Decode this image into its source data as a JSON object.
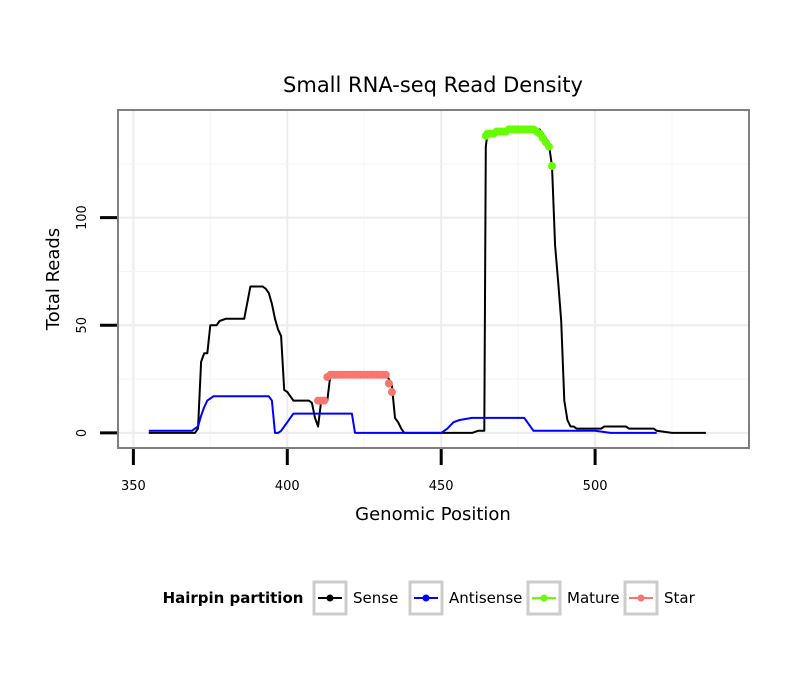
{
  "chart_data": {
    "type": "line",
    "title": "Small RNA-seq Read Density",
    "xlabel": "Genomic Position",
    "ylabel": "Total Reads",
    "xlim": [
      345,
      550
    ],
    "ylim": [
      -7,
      150
    ],
    "x_ticks": [
      350,
      400,
      450,
      500
    ],
    "y_ticks": [
      0,
      50,
      100
    ],
    "grid": true,
    "legend": {
      "title": "Hairpin partition",
      "position": "bottom",
      "entries": [
        "Sense",
        "Antisense",
        "Mature",
        "Star"
      ]
    },
    "series": [
      {
        "name": "Sense",
        "color": "#000000",
        "style": "line",
        "x": [
          355,
          370,
          371,
          372,
          373,
          374,
          375,
          376,
          377,
          378,
          380,
          382,
          384,
          385,
          386,
          388,
          390,
          391,
          392,
          393,
          394,
          395,
          396,
          397,
          398,
          399,
          400,
          402,
          404,
          405,
          407,
          408,
          409,
          410,
          411,
          412,
          413,
          414,
          431,
          432,
          433,
          434,
          435,
          436,
          437,
          438,
          440,
          445,
          450,
          455,
          460,
          462,
          464,
          464.5,
          465,
          468,
          476,
          480,
          482,
          483,
          484,
          485,
          486,
          487,
          488,
          489,
          490,
          491,
          492,
          493,
          494,
          496,
          500,
          502,
          503,
          505,
          510,
          511,
          515,
          516,
          519,
          520,
          525,
          530,
          536
        ],
        "y": [
          0,
          0,
          2,
          33,
          37,
          37,
          50,
          50,
          50,
          52,
          53,
          53,
          53,
          53,
          53,
          68,
          68,
          68,
          68,
          67,
          65,
          60,
          53,
          48,
          45,
          20,
          19,
          15,
          15,
          15,
          15,
          14,
          7,
          3,
          15,
          15,
          15,
          27,
          27,
          27,
          25,
          22,
          7,
          5,
          2,
          0,
          0,
          0,
          0,
          0,
          0,
          1,
          1,
          133,
          139,
          140,
          141,
          141,
          141,
          139,
          137,
          134,
          124,
          87,
          70,
          52,
          15,
          6,
          3,
          3,
          2,
          2,
          2,
          2,
          3,
          3,
          3,
          2,
          2,
          2,
          2,
          1,
          0,
          0,
          0
        ]
      },
      {
        "name": "Antisense",
        "color": "#0000ff",
        "style": "line",
        "x": [
          355,
          365,
          368,
          369,
          370,
          371,
          372,
          373,
          374,
          375,
          376,
          377,
          378,
          380,
          385,
          390,
          393,
          394,
          395,
          396,
          397,
          398,
          399,
          400,
          402,
          410,
          415,
          416,
          417,
          418,
          419,
          420,
          421,
          422,
          430,
          435,
          440,
          450,
          452,
          454,
          456,
          460,
          462,
          465,
          470,
          475,
          476,
          477,
          480,
          490,
          500,
          505,
          510,
          515,
          517,
          518,
          519,
          520
        ],
        "y": [
          1,
          1,
          1,
          1,
          2,
          3,
          8,
          12,
          15,
          16,
          17,
          17,
          17,
          17,
          17,
          17,
          17,
          17,
          15,
          0,
          0,
          1,
          3,
          5,
          9,
          9,
          9,
          9,
          9,
          9,
          9,
          9,
          9,
          0,
          0,
          0,
          0,
          0,
          2,
          5,
          6,
          7,
          7,
          7,
          7,
          7,
          7,
          7,
          1,
          1,
          1,
          0,
          0,
          0,
          0,
          0,
          0,
          0
        ]
      },
      {
        "name": "Mature",
        "color": "#66ff00",
        "style": "points",
        "x": [
          464.5,
          465,
          466,
          467,
          468,
          469,
          470,
          471,
          472,
          473,
          474,
          475,
          476,
          477,
          478,
          479,
          480,
          481,
          482,
          483,
          484,
          485,
          486
        ],
        "y": [
          138,
          139,
          139,
          139,
          140,
          140,
          140,
          140,
          141,
          141,
          141,
          141,
          141,
          141,
          141,
          141,
          141,
          140,
          139,
          137,
          135,
          133,
          124
        ]
      },
      {
        "name": "Star",
        "color": "#f8766d",
        "style": "points",
        "x": [
          410,
          411,
          412,
          413,
          414,
          415,
          416,
          417,
          418,
          419,
          420,
          421,
          422,
          423,
          424,
          425,
          426,
          427,
          428,
          429,
          430,
          431,
          432,
          433,
          434
        ],
        "y": [
          15,
          15,
          15,
          26,
          27,
          27,
          27,
          27,
          27,
          27,
          27,
          27,
          27,
          27,
          27,
          27,
          27,
          27,
          27,
          27,
          27,
          27,
          27,
          23,
          19
        ]
      }
    ]
  }
}
